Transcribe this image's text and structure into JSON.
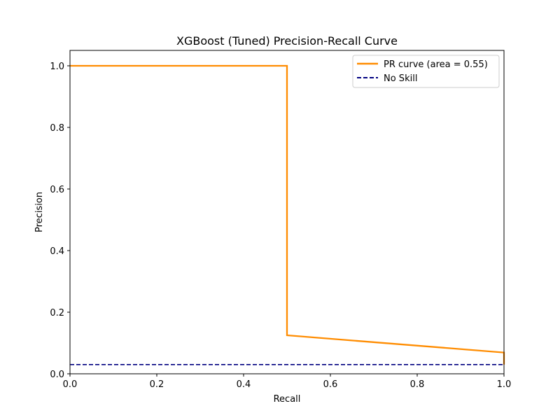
{
  "chart_data": {
    "type": "line",
    "title": "XGBoost (Tuned) Precision-Recall Curve",
    "xlabel": "Recall",
    "ylabel": "Precision",
    "xlim": [
      0.0,
      1.0
    ],
    "ylim": [
      0.0,
      1.05
    ],
    "xticks": [
      "0.0",
      "0.2",
      "0.4",
      "0.6",
      "0.8",
      "1.0"
    ],
    "yticks": [
      "0.0",
      "0.2",
      "0.4",
      "0.6",
      "0.8",
      "1.0"
    ],
    "grid": false,
    "legend_position": "top-right",
    "series": [
      {
        "name": "PR curve (area = 0.55)",
        "color": "#ff8c00",
        "style": "solid",
        "x": [
          0.0,
          0.5,
          0.5,
          1.0,
          1.0
        ],
        "y": [
          1.0,
          1.0,
          0.125,
          0.069,
          0.03
        ]
      },
      {
        "name": "No Skill",
        "color": "#000080",
        "style": "dashed",
        "x": [
          0.0,
          1.0
        ],
        "y": [
          0.03,
          0.03
        ]
      }
    ]
  }
}
